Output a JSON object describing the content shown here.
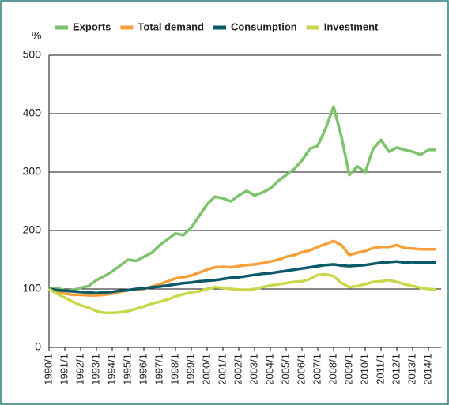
{
  "chart_data": {
    "type": "line",
    "y_label": "%",
    "categories": [
      "1990/1",
      null,
      "1991/1",
      null,
      "1992/1",
      null,
      "1993/1",
      null,
      "1994/1",
      null,
      "1995/1",
      null,
      "1996/1",
      null,
      "1997/1",
      null,
      "1998/1",
      null,
      "1999/1",
      null,
      "2000/1",
      null,
      "2001/1",
      null,
      "2002/1",
      null,
      "2003/1",
      null,
      "2004/1",
      null,
      "2005/1",
      null,
      "2006/1",
      null,
      "2007/1",
      null,
      "2008/1",
      null,
      "2009/1",
      null,
      "2010/1",
      null,
      "2011/1",
      null,
      "2012/1",
      null,
      "2013/1",
      null,
      "2014/1",
      null
    ],
    "series": [
      {
        "name": "Exports",
        "color": "#7dc36b",
        "values": [
          100,
          102,
          97,
          98,
          102,
          105,
          115,
          122,
          130,
          140,
          150,
          148,
          155,
          162,
          175,
          185,
          195,
          192,
          205,
          225,
          245,
          258,
          255,
          250,
          260,
          268,
          260,
          265,
          272,
          285,
          295,
          305,
          320,
          340,
          345,
          375,
          412,
          360,
          295,
          310,
          300,
          340,
          355,
          335,
          342,
          338,
          335,
          330,
          338,
          338
        ]
      },
      {
        "name": "Total demand",
        "color": "#f7a03a",
        "values": [
          100,
          95,
          92,
          90,
          90,
          89,
          89,
          90,
          92,
          95,
          98,
          99,
          100,
          104,
          108,
          113,
          118,
          120,
          123,
          128,
          133,
          137,
          138,
          137,
          139,
          141,
          142,
          144,
          147,
          150,
          155,
          158,
          163,
          166,
          172,
          177,
          182,
          175,
          158,
          162,
          165,
          170,
          172,
          172,
          175,
          170,
          169,
          168,
          168,
          168
        ]
      },
      {
        "name": "Consumption",
        "color": "#0a5a6a",
        "values": [
          100,
          98,
          97,
          96,
          95,
          94,
          93,
          94,
          95,
          97,
          98,
          100,
          101,
          103,
          104,
          106,
          108,
          110,
          111,
          113,
          114,
          115,
          117,
          119,
          120,
          122,
          124,
          126,
          127,
          129,
          131,
          133,
          135,
          137,
          139,
          141,
          142,
          140,
          139,
          140,
          141,
          143,
          145,
          146,
          147,
          145,
          146,
          145,
          145,
          145
        ]
      },
      {
        "name": "Investment",
        "color": "#c8d84a",
        "values": [
          100,
          92,
          85,
          78,
          72,
          68,
          62,
          59,
          59,
          60,
          62,
          66,
          70,
          75,
          78,
          82,
          87,
          91,
          94,
          96,
          100,
          103,
          102,
          100,
          99,
          98,
          100,
          103,
          106,
          108,
          110,
          112,
          113,
          117,
          124,
          125,
          122,
          110,
          103,
          105,
          108,
          112,
          113,
          115,
          112,
          108,
          105,
          102,
          100,
          99
        ]
      }
    ],
    "ylim": [
      0,
      500
    ],
    "yticks": [
      0,
      100,
      200,
      300,
      400,
      500
    ],
    "grid": true,
    "legend": "top"
  }
}
